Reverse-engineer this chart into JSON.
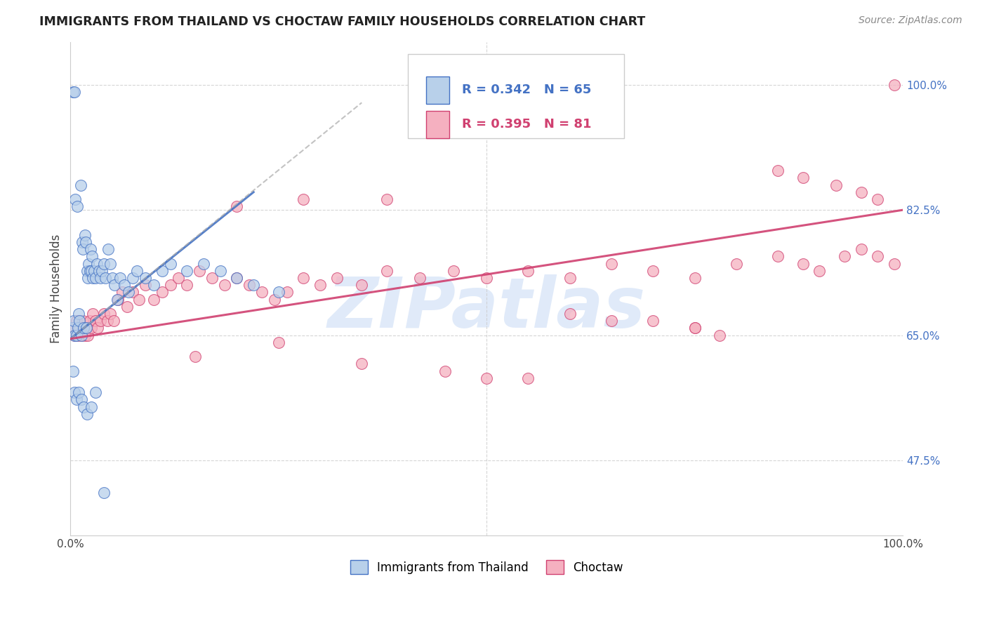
{
  "title": "IMMIGRANTS FROM THAILAND VS CHOCTAW FAMILY HOUSEHOLDS CORRELATION CHART",
  "source": "Source: ZipAtlas.com",
  "ylabel": "Family Households",
  "xlim": [
    0.0,
    1.0
  ],
  "ylim": [
    0.37,
    1.06
  ],
  "ytick_vals": [
    0.475,
    0.65,
    0.825,
    1.0
  ],
  "ytick_labels": [
    "47.5%",
    "65.0%",
    "82.5%",
    "100.0%"
  ],
  "xtick_vals": [
    0.0,
    0.25,
    0.5,
    0.75,
    1.0
  ],
  "xtick_labels": [
    "0.0%",
    "",
    "",
    "",
    "100.0%"
  ],
  "legend_r1": "R = 0.342",
  "legend_n1": "N = 65",
  "legend_r2": "R = 0.395",
  "legend_n2": "N = 81",
  "series1_label": "Immigrants from Thailand",
  "series2_label": "Choctaw",
  "series1_fill": "#b8d0ea",
  "series2_fill": "#f5b0c0",
  "trend1_color": "#4472c4",
  "trend2_color": "#d04070",
  "ytick_color": "#4472c4",
  "watermark": "ZIPatlas",
  "watermark_color": "#ccddf5",
  "trend1_x0": 0.0,
  "trend1_y0": 0.645,
  "trend1_x1": 0.22,
  "trend1_y1": 0.85,
  "trend1_dash_x0": 0.0,
  "trend1_dash_y0": 0.645,
  "trend1_dash_x1": 0.35,
  "trend1_dash_y1": 0.975,
  "trend2_x0": 0.0,
  "trend2_y0": 0.645,
  "trend2_x1": 1.0,
  "trend2_y1": 0.825,
  "blue_x": [
    0.002,
    0.003,
    0.004,
    0.005,
    0.005,
    0.006,
    0.007,
    0.008,
    0.009,
    0.01,
    0.011,
    0.012,
    0.013,
    0.014,
    0.015,
    0.016,
    0.017,
    0.018,
    0.019,
    0.02,
    0.021,
    0.022,
    0.023,
    0.024,
    0.025,
    0.026,
    0.027,
    0.028,
    0.03,
    0.032,
    0.034,
    0.036,
    0.038,
    0.04,
    0.042,
    0.045,
    0.048,
    0.05,
    0.053,
    0.056,
    0.06,
    0.065,
    0.07,
    0.075,
    0.08,
    0.09,
    0.1,
    0.11,
    0.12,
    0.14,
    0.16,
    0.18,
    0.2,
    0.22,
    0.25,
    0.003,
    0.005,
    0.007,
    0.01,
    0.013,
    0.016,
    0.02,
    0.025,
    0.03,
    0.04
  ],
  "blue_y": [
    0.66,
    0.99,
    0.67,
    0.99,
    0.65,
    0.84,
    0.65,
    0.83,
    0.66,
    0.68,
    0.67,
    0.86,
    0.65,
    0.78,
    0.77,
    0.66,
    0.79,
    0.78,
    0.66,
    0.74,
    0.73,
    0.75,
    0.74,
    0.77,
    0.74,
    0.76,
    0.73,
    0.74,
    0.73,
    0.75,
    0.74,
    0.73,
    0.74,
    0.75,
    0.73,
    0.77,
    0.75,
    0.73,
    0.72,
    0.7,
    0.73,
    0.72,
    0.71,
    0.73,
    0.74,
    0.73,
    0.72,
    0.74,
    0.75,
    0.74,
    0.75,
    0.74,
    0.73,
    0.72,
    0.71,
    0.6,
    0.57,
    0.56,
    0.57,
    0.56,
    0.55,
    0.54,
    0.55,
    0.57,
    0.43
  ],
  "pink_x": [
    0.003,
    0.005,
    0.007,
    0.009,
    0.011,
    0.013,
    0.015,
    0.017,
    0.019,
    0.021,
    0.023,
    0.025,
    0.027,
    0.03,
    0.033,
    0.036,
    0.04,
    0.044,
    0.048,
    0.052,
    0.057,
    0.062,
    0.068,
    0.075,
    0.082,
    0.09,
    0.1,
    0.11,
    0.12,
    0.13,
    0.14,
    0.155,
    0.17,
    0.185,
    0.2,
    0.215,
    0.23,
    0.245,
    0.26,
    0.28,
    0.3,
    0.32,
    0.35,
    0.38,
    0.42,
    0.46,
    0.5,
    0.55,
    0.6,
    0.65,
    0.7,
    0.75,
    0.8,
    0.85,
    0.88,
    0.9,
    0.93,
    0.95,
    0.97,
    0.99,
    0.99,
    0.2,
    0.28,
    0.38,
    0.5,
    0.6,
    0.7,
    0.75,
    0.78,
    0.85,
    0.88,
    0.92,
    0.95,
    0.97,
    0.15,
    0.25,
    0.35,
    0.45,
    0.55,
    0.65,
    0.75
  ],
  "pink_y": [
    0.66,
    0.65,
    0.67,
    0.65,
    0.66,
    0.65,
    0.67,
    0.65,
    0.66,
    0.65,
    0.67,
    0.66,
    0.68,
    0.67,
    0.66,
    0.67,
    0.68,
    0.67,
    0.68,
    0.67,
    0.7,
    0.71,
    0.69,
    0.71,
    0.7,
    0.72,
    0.7,
    0.71,
    0.72,
    0.73,
    0.72,
    0.74,
    0.73,
    0.72,
    0.73,
    0.72,
    0.71,
    0.7,
    0.71,
    0.73,
    0.72,
    0.73,
    0.72,
    0.74,
    0.73,
    0.74,
    0.73,
    0.74,
    0.73,
    0.75,
    0.74,
    0.73,
    0.75,
    0.76,
    0.75,
    0.74,
    0.76,
    0.77,
    0.76,
    0.75,
    1.0,
    0.83,
    0.84,
    0.84,
    0.59,
    0.68,
    0.67,
    0.66,
    0.65,
    0.88,
    0.87,
    0.86,
    0.85,
    0.84,
    0.62,
    0.64,
    0.61,
    0.6,
    0.59,
    0.67,
    0.66
  ]
}
